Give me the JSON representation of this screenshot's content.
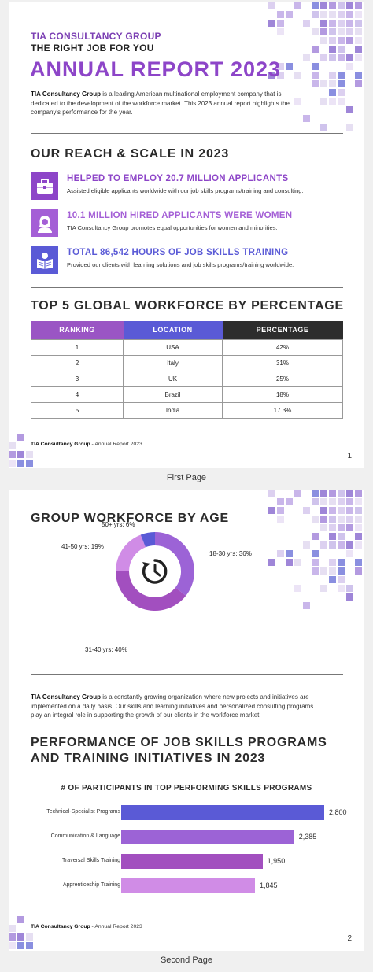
{
  "page1": {
    "brand": "TIA CONSULTANCY GROUP",
    "tagline": "THE RIGHT JOB FOR YOU",
    "title": "ANNUAL REPORT 2023",
    "intro_bold": "TIA Consultancy Group",
    "intro_rest": " is a leading American multinational employment company that is dedicated to the development of the workforce market. This 2023 annual report highlights the company's performance for the year.",
    "reach_title": "OUR REACH & SCALE IN 2023",
    "stats": [
      {
        "title": "HELPED TO EMPLOY 20.7 MILLION APPLICANTS",
        "text": "Assisted eligible applicants worldwide with our job skills programs/training and consulting.",
        "icon": "briefcase-icon",
        "color": "#8d45c8"
      },
      {
        "title": "10.1 MILLION HIRED APPLICANTS WERE WOMEN",
        "text": "TIA Consultancy Group promotes equal opportunities for women and minorities.",
        "icon": "woman-icon",
        "color": "#a45fd6"
      },
      {
        "title": "TOTAL 86,542 HOURS OF JOB SKILLS TRAINING",
        "text": "Provided our clients with learning solutions and job skills programs/training worldwide.",
        "icon": "reading-icon",
        "color": "#5a5ad6"
      }
    ],
    "table_title": "TOP 5 GLOBAL WORKFORCE BY PERCENTAGE",
    "table": {
      "headers": [
        "RANKING",
        "LOCATION",
        "PERCENTAGE"
      ],
      "header_colors": [
        "#9a55c4",
        "#5a5ad6",
        "#2d2d2d"
      ],
      "rows": [
        [
          "1",
          "USA",
          "42%"
        ],
        [
          "2",
          "Italy",
          "31%"
        ],
        [
          "3",
          "UK",
          "25%"
        ],
        [
          "4",
          "Brazil",
          "18%"
        ],
        [
          "5",
          "India",
          "17.3%"
        ]
      ]
    },
    "footer_bold": "TIA Consultancy Group",
    "footer_rest": " - Annual Report 2023",
    "page_number": "1",
    "caption": "First Page"
  },
  "page2": {
    "age_title": "GROUP WORKFORCE BY AGE",
    "para_bold": "TIA Consultancy Group",
    "para_rest": " is a constantly growing organization where new projects and initiatives are implemented on a daily basis. Our skills and learning initiatives and personalized consulting programs play an integral role in supporting the growth of our clients in the workforce market.",
    "perf_title_line1": "PERFORMANCE OF JOB SKILLS PROGRAMS",
    "perf_title_line2": "AND TRAINING INITIATIVES IN 2023",
    "footer_bold": "TIA Consultancy Group",
    "footer_rest": " - Annual Report 2023",
    "page_number": "2",
    "caption": "Second Page",
    "center_icon": "clock-refresh-icon"
  },
  "chart_data": [
    {
      "type": "pie",
      "title": "",
      "categories": [
        "18-30 yrs: 36%",
        "31-40 yrs: 40%",
        "41-50 yrs: 19%",
        "50+ yrs: 6%"
      ],
      "values": [
        36,
        40,
        19,
        6
      ],
      "colors": [
        "#9c63d6",
        "#a24fbf",
        "#d08ce6",
        "#5a5ad6"
      ]
    },
    {
      "type": "bar",
      "title": "# OF PARTICIPANTS IN TOP PERFORMING SKILLS PROGRAMS",
      "categories": [
        "Technical-Specialist Programs",
        "Communication & Language",
        "Traversal Skills Training",
        "Apprenticeship Training"
      ],
      "values": [
        2800,
        2385,
        1950,
        1845
      ],
      "value_labels": [
        "2,800",
        "2,385",
        "1,950",
        "1,845"
      ],
      "colors": [
        "#5a5ad6",
        "#9c63d6",
        "#a24fbf",
        "#d08ce6"
      ],
      "xlim": [
        0,
        2800
      ]
    }
  ]
}
